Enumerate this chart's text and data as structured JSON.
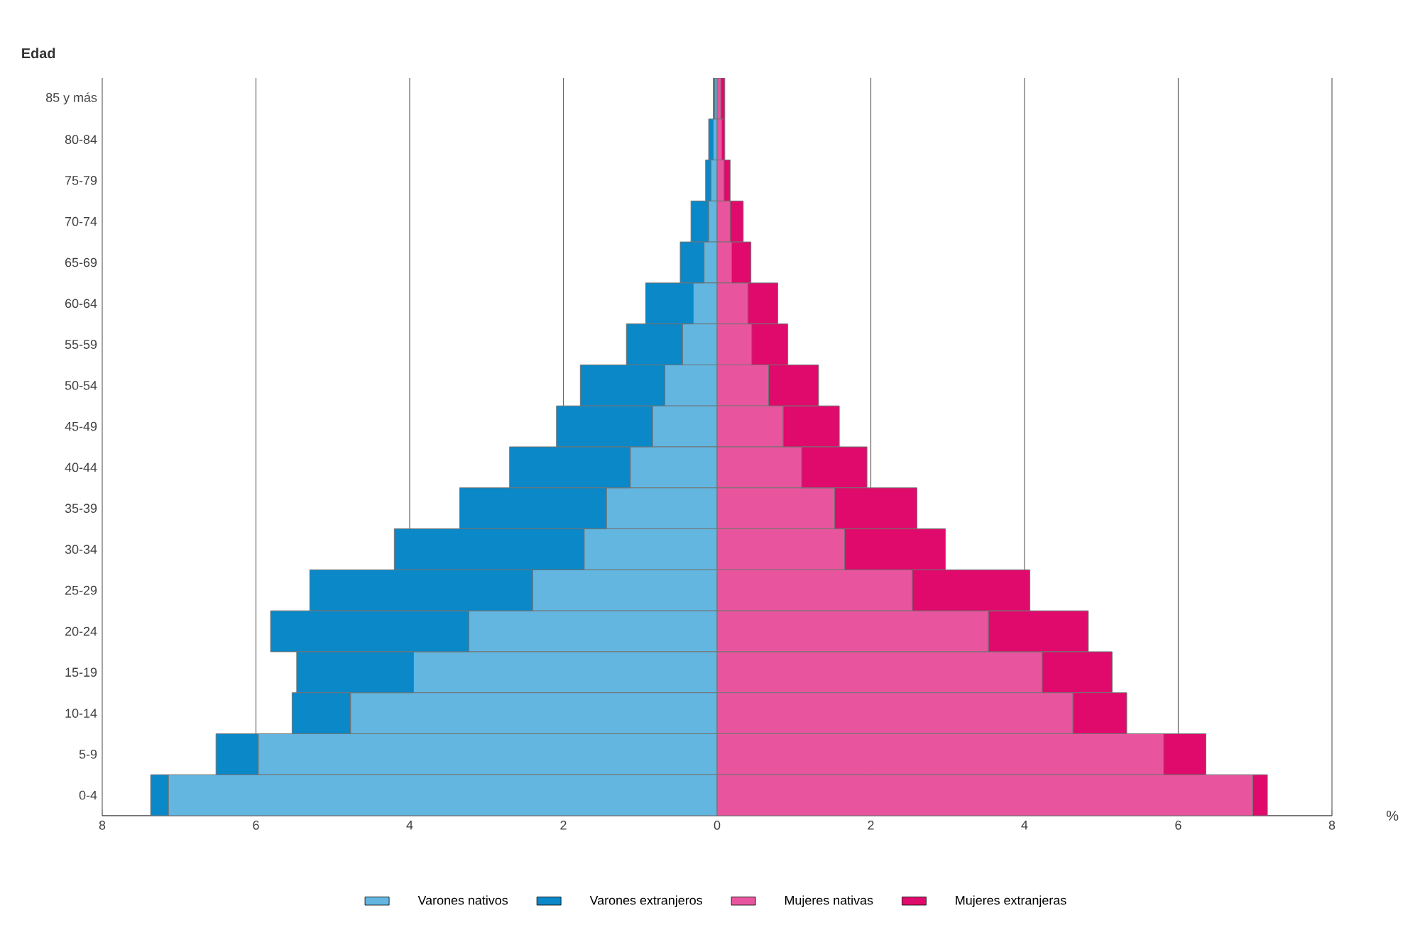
{
  "chart_data": {
    "type": "bar",
    "orientation": "horizontal",
    "stacked": true,
    "ylabel": "Edad",
    "xlabel": "%",
    "categories": [
      "85 y más",
      "80-84",
      "75-79",
      "70-74",
      "65-69",
      "60-64",
      "55-59",
      "50-54",
      "45-49",
      "40-44",
      "35-39",
      "30-34",
      "25-29",
      "20-24",
      "15-19",
      "10-14",
      "5-9",
      "0-4"
    ],
    "series": [
      {
        "name": "Varones nativos",
        "color": "#62b6e0",
        "values": [
          -0.03,
          -0.05,
          -0.08,
          -0.11,
          -0.17,
          -0.31,
          -0.45,
          -0.68,
          -0.84,
          -1.13,
          -1.44,
          -1.73,
          -2.4,
          -3.23,
          -3.95,
          -4.77,
          -5.97,
          -7.14
        ]
      },
      {
        "name": "Varones extranjeros",
        "color": "#0a88c8",
        "values": [
          -0.02,
          -0.06,
          -0.07,
          -0.23,
          -0.31,
          -0.62,
          -0.73,
          -1.1,
          -1.25,
          -1.57,
          -1.91,
          -2.47,
          -2.9,
          -2.58,
          -1.52,
          -0.76,
          -0.55,
          -0.23
        ]
      },
      {
        "name": "Mujeres nativas",
        "color": "#e8559e",
        "values": [
          0.05,
          0.06,
          0.09,
          0.17,
          0.19,
          0.4,
          0.45,
          0.67,
          0.86,
          1.1,
          1.53,
          1.66,
          2.54,
          3.53,
          4.23,
          4.63,
          5.81,
          6.97
        ]
      },
      {
        "name": "Mujeres extranjeras",
        "color": "#df0a6c",
        "values": [
          0.05,
          0.04,
          0.08,
          0.17,
          0.25,
          0.39,
          0.47,
          0.65,
          0.73,
          0.85,
          1.07,
          1.31,
          1.53,
          1.3,
          0.91,
          0.7,
          0.55,
          0.19
        ]
      }
    ],
    "xlim": [
      -8,
      8
    ],
    "xticks": [
      {
        "value": -8,
        "label": "8"
      },
      {
        "value": -6,
        "label": "6"
      },
      {
        "value": -4,
        "label": "4"
      },
      {
        "value": -2,
        "label": "2"
      },
      0,
      2,
      4,
      6,
      8
    ],
    "grid": "x",
    "legend": "bottom"
  }
}
